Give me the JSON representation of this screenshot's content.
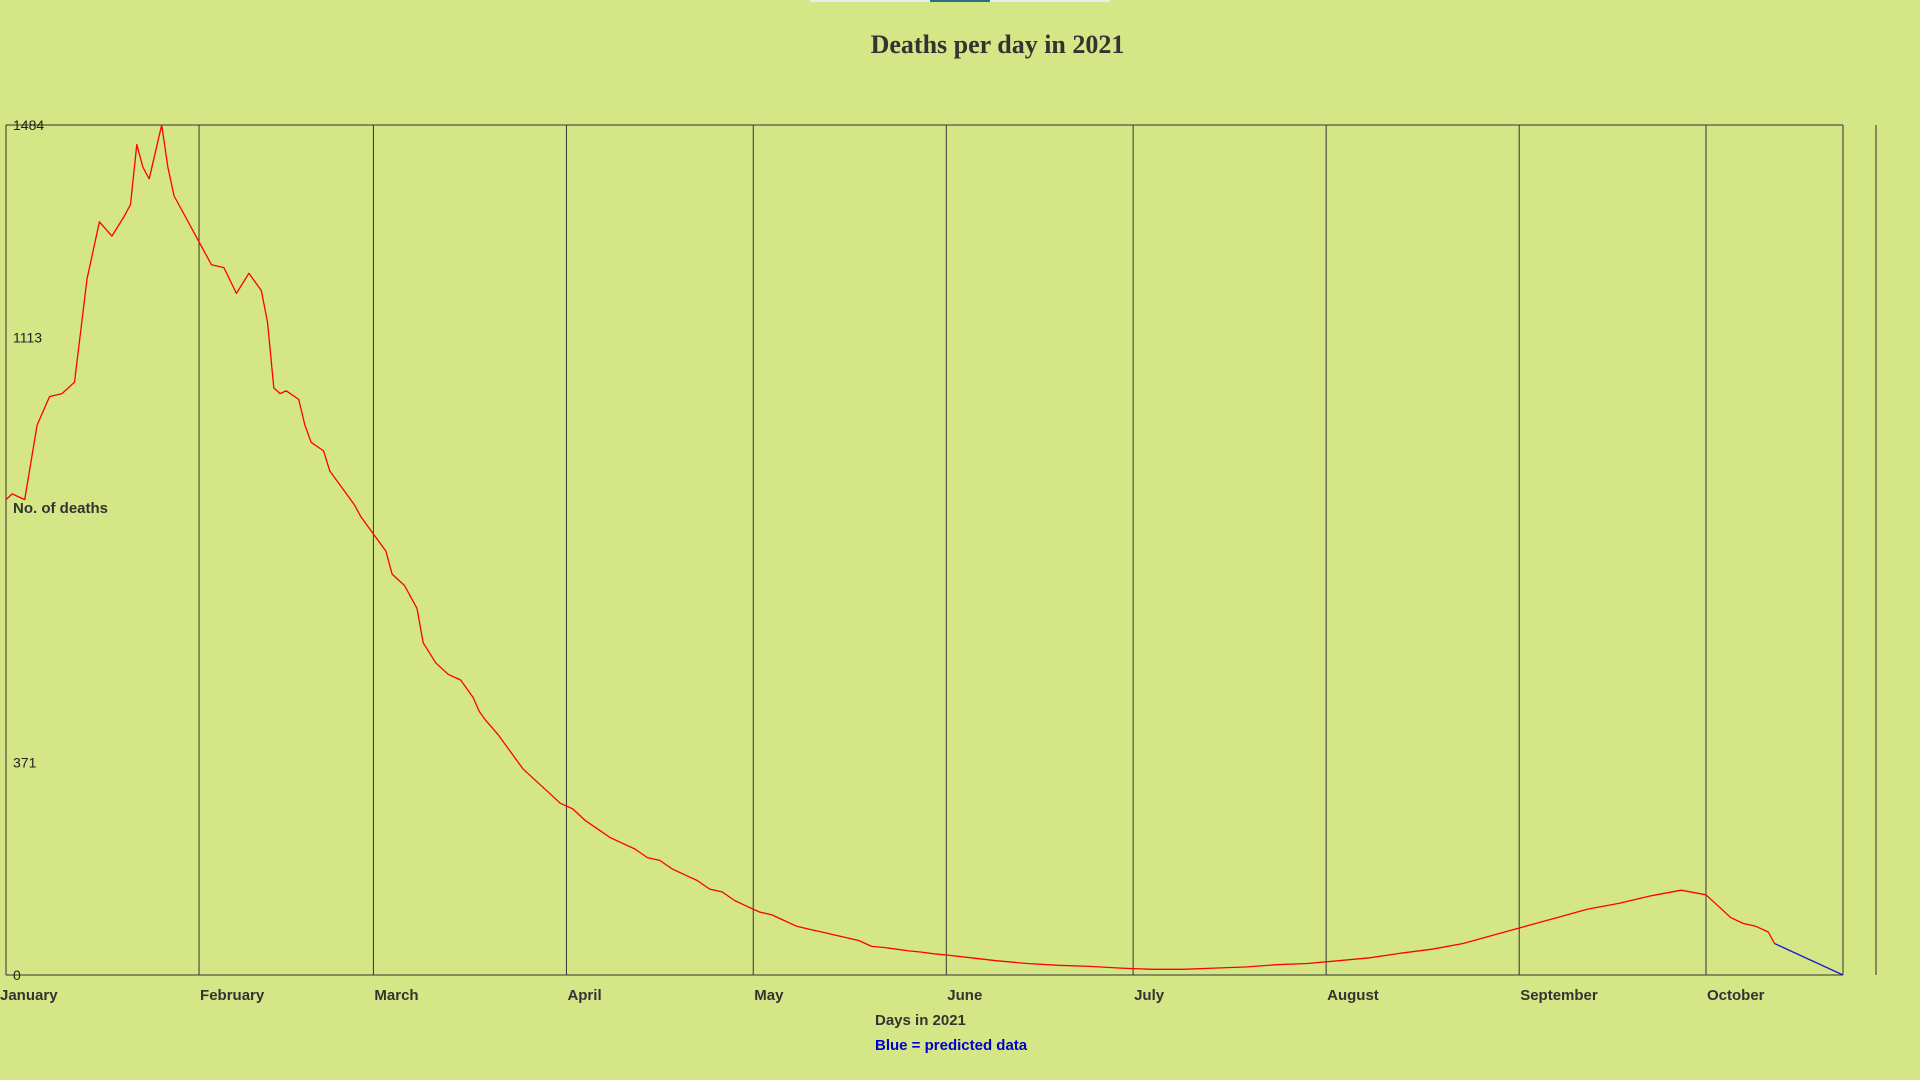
{
  "chart_data": {
    "type": "line",
    "title": "Deaths per day in 2021",
    "xlabel": "Days in 2021",
    "ylabel": "No. of deaths",
    "note": "Blue = predicted data",
    "y_ticks": [
      "0",
      "371",
      "1113",
      "1484"
    ],
    "y_tick_values": [
      0,
      371,
      1113,
      1484
    ],
    "ylim": [
      0,
      1484
    ],
    "x_unit": "day of year",
    "xlim": [
      1,
      296
    ],
    "grid": "vertical lines at month starts",
    "months": [
      {
        "label": "January",
        "day": 1
      },
      {
        "label": "February",
        "day": 32
      },
      {
        "label": "March",
        "day": 60
      },
      {
        "label": "April",
        "day": 91
      },
      {
        "label": "May",
        "day": 121
      },
      {
        "label": "June",
        "day": 152
      },
      {
        "label": "July",
        "day": 182
      },
      {
        "label": "August",
        "day": 213
      },
      {
        "label": "September",
        "day": 244
      },
      {
        "label": "October",
        "day": 274
      }
    ],
    "colors": {
      "actual": "#ff0000",
      "predicted": "#1a1acc",
      "note": "#0000cc",
      "grid": "#333333"
    },
    "series": [
      {
        "name": "",
        "color": "#ff0000",
        "points": [
          [
            1,
            830
          ],
          [
            2,
            840
          ],
          [
            4,
            830
          ],
          [
            6,
            960
          ],
          [
            8,
            1010
          ],
          [
            10,
            1015
          ],
          [
            12,
            1035
          ],
          [
            14,
            1215
          ],
          [
            16,
            1315
          ],
          [
            18,
            1290
          ],
          [
            20,
            1325
          ],
          [
            21,
            1345
          ],
          [
            22,
            1450
          ],
          [
            23,
            1410
          ],
          [
            24,
            1390
          ],
          [
            26,
            1484
          ],
          [
            27,
            1410
          ],
          [
            28,
            1360
          ],
          [
            29,
            1340
          ],
          [
            31,
            1300
          ],
          [
            32,
            1280
          ],
          [
            34,
            1240
          ],
          [
            36,
            1235
          ],
          [
            38,
            1190
          ],
          [
            40,
            1225
          ],
          [
            42,
            1195
          ],
          [
            43,
            1140
          ],
          [
            44,
            1025
          ],
          [
            45,
            1015
          ],
          [
            46,
            1020
          ],
          [
            48,
            1005
          ],
          [
            49,
            960
          ],
          [
            50,
            930
          ],
          [
            52,
            915
          ],
          [
            53,
            880
          ],
          [
            55,
            850
          ],
          [
            57,
            820
          ],
          [
            58,
            800
          ],
          [
            60,
            770
          ],
          [
            62,
            740
          ],
          [
            63,
            700
          ],
          [
            65,
            680
          ],
          [
            67,
            640
          ],
          [
            68,
            580
          ],
          [
            70,
            545
          ],
          [
            72,
            525
          ],
          [
            74,
            515
          ],
          [
            76,
            485
          ],
          [
            77,
            460
          ],
          [
            78,
            445
          ],
          [
            80,
            420
          ],
          [
            82,
            390
          ],
          [
            84,
            360
          ],
          [
            86,
            340
          ],
          [
            88,
            320
          ],
          [
            90,
            300
          ],
          [
            92,
            290
          ],
          [
            94,
            270
          ],
          [
            96,
            255
          ],
          [
            98,
            240
          ],
          [
            100,
            230
          ],
          [
            102,
            220
          ],
          [
            104,
            205
          ],
          [
            106,
            200
          ],
          [
            108,
            185
          ],
          [
            110,
            175
          ],
          [
            112,
            165
          ],
          [
            114,
            150
          ],
          [
            116,
            145
          ],
          [
            118,
            130
          ],
          [
            120,
            120
          ],
          [
            122,
            110
          ],
          [
            124,
            105
          ],
          [
            126,
            95
          ],
          [
            128,
            85
          ],
          [
            130,
            80
          ],
          [
            132,
            75
          ],
          [
            134,
            70
          ],
          [
            136,
            65
          ],
          [
            138,
            60
          ],
          [
            140,
            50
          ],
          [
            142,
            48
          ],
          [
            144,
            45
          ],
          [
            146,
            42
          ],
          [
            148,
            40
          ],
          [
            150,
            37
          ],
          [
            152,
            35
          ],
          [
            156,
            30
          ],
          [
            160,
            25
          ],
          [
            165,
            20
          ],
          [
            170,
            17
          ],
          [
            175,
            15
          ],
          [
            180,
            12
          ],
          [
            185,
            10
          ],
          [
            190,
            10
          ],
          [
            195,
            12
          ],
          [
            200,
            14
          ],
          [
            205,
            18
          ],
          [
            210,
            20
          ],
          [
            215,
            25
          ],
          [
            220,
            30
          ],
          [
            225,
            38
          ],
          [
            230,
            45
          ],
          [
            235,
            55
          ],
          [
            240,
            70
          ],
          [
            245,
            85
          ],
          [
            250,
            100
          ],
          [
            255,
            115
          ],
          [
            260,
            125
          ],
          [
            265,
            138
          ],
          [
            270,
            148
          ],
          [
            274,
            140
          ],
          [
            276,
            120
          ],
          [
            278,
            100
          ],
          [
            280,
            90
          ],
          [
            282,
            85
          ],
          [
            284,
            75
          ],
          [
            285,
            55
          ]
        ]
      },
      {
        "name": "",
        "color": "#1a1acc",
        "predicted": true,
        "points": [
          [
            285,
            55
          ],
          [
            296,
            0
          ]
        ]
      }
    ]
  }
}
